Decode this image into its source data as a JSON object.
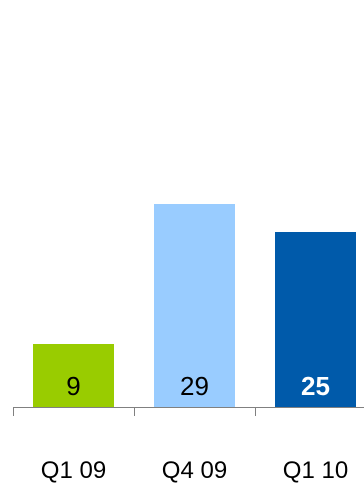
{
  "chart_data": {
    "type": "bar",
    "categories": [
      "Q1 09",
      "Q4 09",
      "Q1 10"
    ],
    "values": [
      9,
      29,
      25
    ],
    "value_labels": [
      "9",
      "29",
      "25"
    ],
    "ylim": [
      0,
      50
    ],
    "grid": false,
    "title": "",
    "xlabel": "",
    "ylabel": "",
    "bar_colors": [
      "#99cc00",
      "#99ccff",
      "#005aaa"
    ],
    "value_label_colors": [
      "#000000",
      "#000000",
      "#ffffff"
    ],
    "value_label_bold": [
      false,
      false,
      true
    ],
    "axis_color": "#808080"
  }
}
